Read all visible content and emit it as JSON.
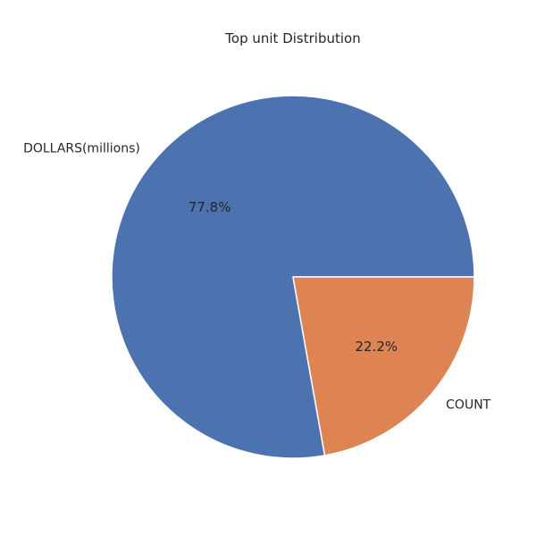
{
  "chart_data": {
    "type": "pie",
    "title": "Top unit Distribution",
    "categories": [
      "DOLLARS(millions)",
      "COUNT"
    ],
    "values": [
      77.8,
      22.2
    ],
    "percent_labels": [
      "77.8%",
      "22.2%"
    ],
    "colors": [
      "#4c72b0",
      "#dd8452"
    ],
    "start_angle_deg": 0,
    "direction": "counterclockwise",
    "legend": "none"
  }
}
